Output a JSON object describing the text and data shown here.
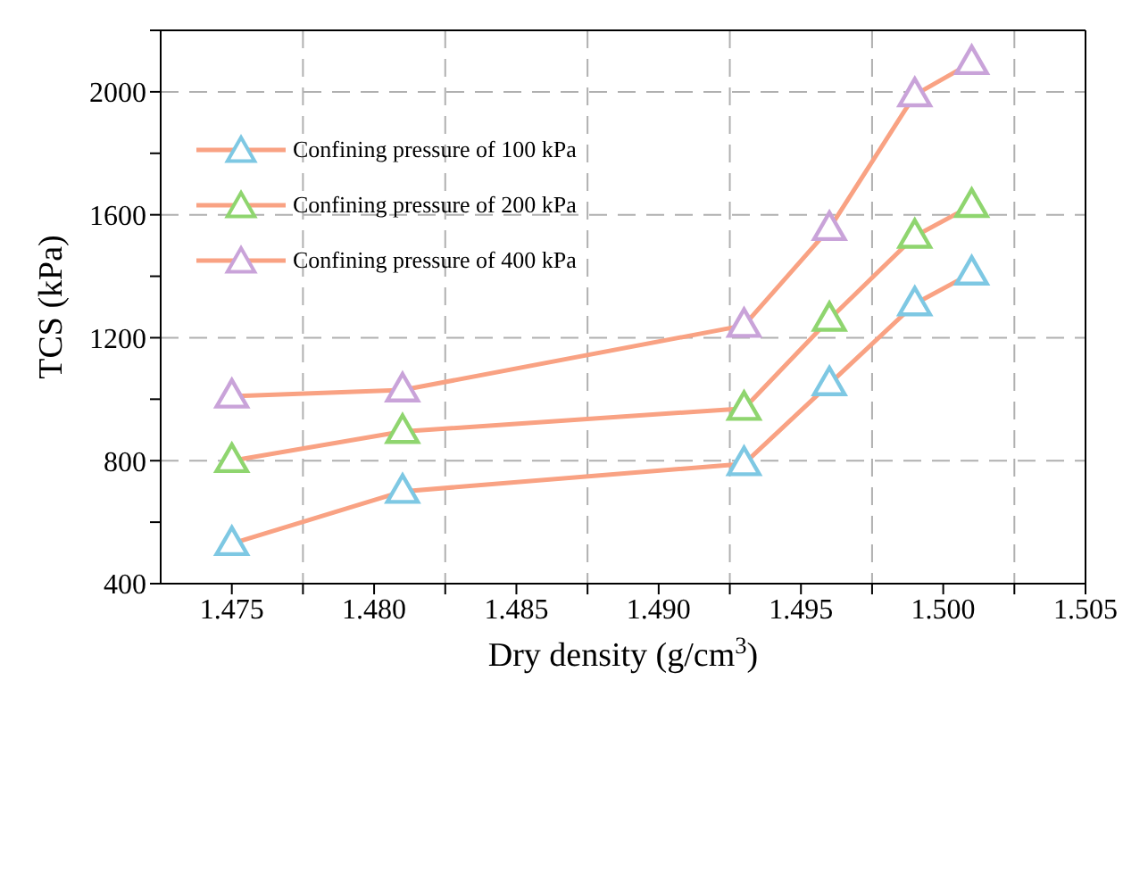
{
  "chart_data": {
    "type": "line",
    "xlabel": "Dry density (g/cm$^{3}$)",
    "ylabel": "TCS (kPa)",
    "x": [
      1.475,
      1.481,
      1.493,
      1.496,
      1.499,
      1.501
    ],
    "series": [
      {
        "name": "Confining pressure of 100 kPa",
        "color": "#f9a283",
        "colors": [
          "#7ec8e3",
          "#7ec8e3",
          "#7ec8e3",
          "#7ec8e3",
          "#7ec8e3",
          "#7ec8e3"
        ],
        "values": [
          530,
          700,
          790,
          1050,
          1310,
          1410
        ]
      },
      {
        "name": "Confining pressure of 200 kPa",
        "color": "#f9a283",
        "colors": [
          "#8fd56f",
          "#8fd56f",
          "#8fd56f",
          "#8fd56f",
          "#8fd56f",
          "#8fd56f"
        ],
        "values": [
          800,
          895,
          970,
          1260,
          1530,
          1630
        ]
      },
      {
        "name": "Confining pressure of 400 kPa",
        "color": "#f9a283",
        "colors": [
          "#c9a3d9",
          "#c9a3d9",
          "#c9a3d9",
          "#c9a3d9",
          "#c9a3d9",
          "#c9a3d9"
        ],
        "values": [
          1010,
          1030,
          1240,
          1555,
          1990,
          2095
        ]
      }
    ],
    "marker": "triangle",
    "grid": true,
    "legend": "top left",
    "xlim": [
      1.4725,
      1.505
    ],
    "ylim": [
      400,
      2200
    ],
    "xticks": [
      1.475,
      {
        "value": 1.4775,
        "label": null
      },
      {
        "value": 1.48,
        "label": "1.480"
      },
      {
        "value": 1.4825,
        "label": null
      },
      1.485,
      {
        "value": 1.4875,
        "label": null
      },
      {
        "value": 1.49,
        "label": "1.490"
      },
      {
        "value": 1.4925,
        "label": null
      },
      1.495,
      {
        "value": 1.4975,
        "label": null
      },
      {
        "value": 1.5,
        "label": "1.500"
      },
      {
        "value": 1.5025,
        "label": null
      },
      1.505
    ],
    "yticks": [
      400,
      {
        "value": 600,
        "label": null
      },
      800,
      {
        "value": 1000,
        "label": null
      },
      1200,
      {
        "value": 1400,
        "label": null
      },
      1600,
      {
        "value": 1800,
        "label": null
      },
      2000,
      {
        "value": 2200,
        "label": null
      }
    ]
  }
}
